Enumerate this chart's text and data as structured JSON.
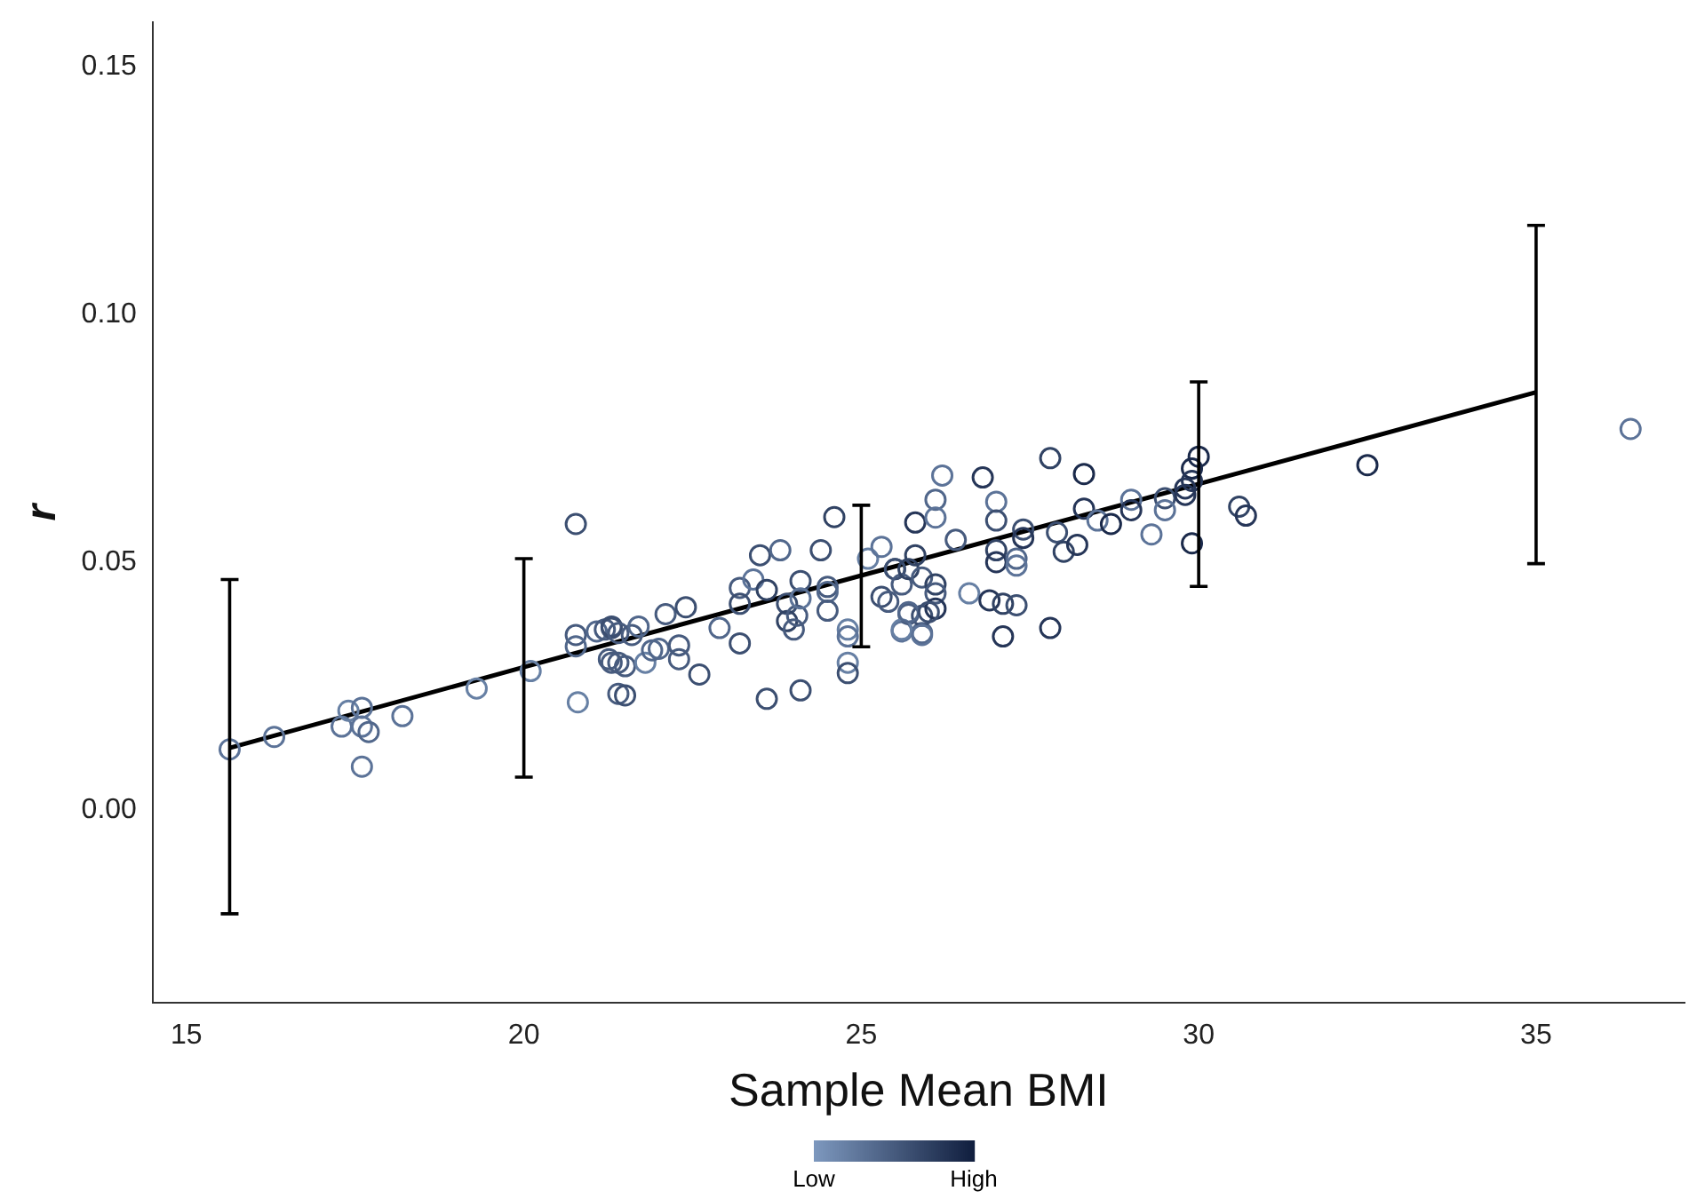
{
  "chart_data": {
    "type": "scatter",
    "xlabel": "Sample Mean BMI",
    "ylabel": "r",
    "xlim": [
      14.5,
      37.2
    ],
    "ylim": [
      -0.039,
      0.159
    ],
    "xticks": [
      15,
      20,
      25,
      30,
      35
    ],
    "yticks": [
      {
        "value": 0,
        "label": "0.00"
      },
      {
        "value": 0.05,
        "label": "0.05"
      },
      {
        "value": 0.1,
        "label": "0.10"
      },
      {
        "value": 0.15,
        "label": "0.15"
      }
    ],
    "grid": false,
    "legend": false,
    "marker": "circle",
    "clim": [
      0,
      1
    ],
    "cticks": [
      {
        "value": 0,
        "label": "Low"
      },
      {
        "value": 1,
        "label": "High"
      }
    ],
    "series": [
      {
        "x": [
          15.64,
          16.3,
          17.3,
          17.4,
          17.6,
          17.6,
          17.7,
          17.6,
          18.2,
          19.3,
          20.1,
          20.77,
          20.77,
          20.77,
          20.8,
          21.08,
          21.2,
          21.3,
          21.26,
          21.4,
          21.4,
          21.3,
          21.4,
          21.6,
          21.7,
          22.1,
          22.4,
          21.3,
          21.5,
          21.8,
          21.9,
          22.0,
          22.3,
          22.3,
          22.6,
          21.5,
          22.9,
          23.2,
          23.2,
          23.4,
          23.2,
          23.5,
          23.6,
          23.8,
          23.9,
          23.9,
          24.0,
          24.05,
          24.1,
          24.1,
          23.6,
          24.1,
          24.4,
          24.5,
          24.5,
          24.5,
          24.6,
          24.8,
          24.8,
          24.8,
          24.8,
          25.1,
          25.3,
          25.3,
          25.4,
          25.5,
          25.5,
          25.6,
          25.6,
          25.7,
          25.8,
          25.8,
          25.9,
          25.9,
          25.9,
          25.7,
          26.1,
          26.1,
          26.1,
          26.1,
          26.1,
          26.2,
          26.4,
          26.8,
          27.0,
          27.0,
          27.0,
          27.0,
          27.3,
          27.3,
          26.6,
          26.9,
          27.1,
          27.3,
          27.1,
          27.4,
          27.4,
          27.8,
          27.9,
          28.0,
          28.2,
          28.3,
          28.3,
          28.5,
          28.7,
          27.8,
          29.0,
          29.0,
          29.3,
          29.5,
          29.5,
          29.8,
          29.9,
          30.0,
          29.9,
          29.9,
          29.8,
          30.6,
          30.7,
          32.5,
          36.4,
          25.6,
          25.9,
          25.7,
          26.0
        ],
        "values": [
          0.0122,
          0.0147,
          0.0168,
          0.02,
          0.0206,
          0.0168,
          0.0157,
          0.0087,
          0.0189,
          0.0245,
          0.028,
          0.0577,
          0.0353,
          0.033,
          0.0217,
          0.036,
          0.0364,
          0.037,
          0.0304,
          0.0297,
          0.0234,
          0.0367,
          0.0357,
          0.0353,
          0.037,
          0.0395,
          0.0409,
          0.0297,
          0.029,
          0.0297,
          0.0322,
          0.0325,
          0.0332,
          0.0304,
          0.0273,
          0.0231,
          0.0367,
          0.0336,
          0.0448,
          0.0465,
          0.0416,
          0.0514,
          0.0444,
          0.0524,
          0.0416,
          0.0381,
          0.0364,
          0.0392,
          0.0462,
          0.0427,
          0.0224,
          0.0241,
          0.0524,
          0.045,
          0.044,
          0.0402,
          0.0591,
          0.0364,
          0.035,
          0.0297,
          0.0276,
          0.0507,
          0.0531,
          0.043,
          0.042,
          0.0486,
          0.0486,
          0.0455,
          0.036,
          0.0486,
          0.0514,
          0.058,
          0.0357,
          0.0469,
          0.0392,
          0.0395,
          0.0626,
          0.059,
          0.0455,
          0.0437,
          0.0406,
          0.0675,
          0.0545,
          0.0671,
          0.0622,
          0.0584,
          0.0524,
          0.05,
          0.0507,
          0.0493,
          0.0437,
          0.0423,
          0.0416,
          0.0413,
          0.035,
          0.0566,
          0.0549,
          0.071,
          0.056,
          0.0521,
          0.0535,
          0.0678,
          0.0608,
          0.0584,
          0.0577,
          0.0367,
          0.0626,
          0.0605,
          0.0556,
          0.0629,
          0.0605,
          0.0636,
          0.0689,
          0.0713,
          0.0664,
          0.0538,
          0.0649,
          0.0612,
          0.0594,
          0.0696,
          0.0769,
          0.0364,
          0.0353,
          0.0399,
          0.0399
        ],
        "colors": [
          "#5c7398",
          "#5c7398",
          "#5c7398",
          "#6780a4",
          "#5c7398",
          "#5c7398",
          "#51678b",
          "#5c7398",
          "#5c7398",
          "#6780a4",
          "#6780a4",
          "#3c4f71",
          "#475b7e",
          "#51678b",
          "#6780a4",
          "#51678b",
          "#475b7e",
          "#3c4f71",
          "#475b7e",
          "#475b7e",
          "#475b7e",
          "#3c4f71",
          "#475b7e",
          "#475b7e",
          "#51678b",
          "#475b7e",
          "#3c4f71",
          "#475b7e",
          "#475b7e",
          "#6780a4",
          "#51678b",
          "#51678b",
          "#475b7e",
          "#475b7e",
          "#3c4f71",
          "#3c4f71",
          "#51678b",
          "#3c4f71",
          "#475b7e",
          "#5c7398",
          "#3c4f71",
          "#3c4f71",
          "#314364",
          "#51678b",
          "#3c4f71",
          "#314364",
          "#475b7e",
          "#475b7e",
          "#3c4f71",
          "#5c7398",
          "#3c4f71",
          "#3c4f71",
          "#3c4f71",
          "#475b7e",
          "#51678b",
          "#475b7e",
          "#314364",
          "#6780a4",
          "#5c7398",
          "#6780a4",
          "#3c4f71",
          "#6780a4",
          "#5c7398",
          "#3c4f71",
          "#475b7e",
          "#314364",
          "#3c4f71",
          "#475b7e",
          "#5c7398",
          "#314364",
          "#314364",
          "#263658",
          "#51678b",
          "#475b7e",
          "#3c4f71",
          "#475b7e",
          "#51678b",
          "#5c7398",
          "#314364",
          "#475b7e",
          "#263658",
          "#5c7398",
          "#475b7e",
          "#263658",
          "#5c7398",
          "#3c4f71",
          "#314364",
          "#263658",
          "#51678b",
          "#5c7398",
          "#6780a4",
          "#263658",
          "#314364",
          "#3c4f71",
          "#263658",
          "#3c4f71",
          "#263658",
          "#314364",
          "#3c4f71",
          "#314364",
          "#263658",
          "#1b2a4b",
          "#263658",
          "#5c7398",
          "#1b2a4b",
          "#263658",
          "#5c7398",
          "#263658",
          "#5c7398",
          "#3c4f71",
          "#5c7398",
          "#263658",
          "#1b2a4b",
          "#1b2a4b",
          "#263658",
          "#1b2a4b",
          "#263658",
          "#314364",
          "#263658",
          "#1b2a4b",
          "#5c7398",
          "#6780a4",
          "#5c7398",
          "#51678b",
          "#3c4f71"
        ]
      },
      {
        "type": "line",
        "color": "#000000",
        "marker": "none",
        "x": [
          15.64,
          20,
          25,
          30,
          35
        ],
        "values": [
          0.0125,
          0.0288,
          0.0473,
          0.0658,
          0.0843
        ],
        "errors": [
          [
            -0.021,
            0.0465
          ],
          [
            0.0066,
            0.0507
          ],
          [
            0.0329,
            0.0615
          ],
          [
            0.0451,
            0.0864
          ],
          [
            0.0497,
            0.118
          ]
        ]
      }
    ]
  }
}
